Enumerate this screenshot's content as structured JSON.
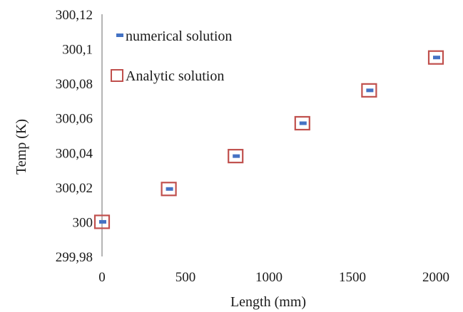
{
  "chart_data": {
    "type": "scatter",
    "title": "",
    "xlabel": "Length (mm)",
    "ylabel": "Temp (K)",
    "xlim": [
      0,
      2000
    ],
    "ylim": [
      299.98,
      300.12
    ],
    "x_ticks": [
      "0",
      "500",
      "1000",
      "1500",
      "2000"
    ],
    "x_tick_values": [
      0,
      500,
      1000,
      1500,
      2000
    ],
    "y_ticks": [
      "299,98",
      "300",
      "300,02",
      "300,04",
      "300,06",
      "300,08",
      "300,1",
      "300,12"
    ],
    "y_tick_values": [
      299.98,
      300,
      300.02,
      300.04,
      300.06,
      300.08,
      300.1,
      300.12
    ],
    "grid": false,
    "legend_position": "top-left",
    "series": [
      {
        "name": "numerical solution",
        "marker": "dash",
        "color": "#4472C4",
        "x": [
          0,
          400,
          800,
          1200,
          1600,
          2000
        ],
        "y": [
          300.0,
          300.019,
          300.038,
          300.057,
          300.076,
          300.095
        ]
      },
      {
        "name": "Analytic solution",
        "marker": "open-square",
        "color": "#C0504D",
        "x": [
          0,
          400,
          800,
          1200,
          1600,
          2000
        ],
        "y": [
          300.0,
          300.019,
          300.038,
          300.057,
          300.076,
          300.095
        ]
      }
    ]
  }
}
